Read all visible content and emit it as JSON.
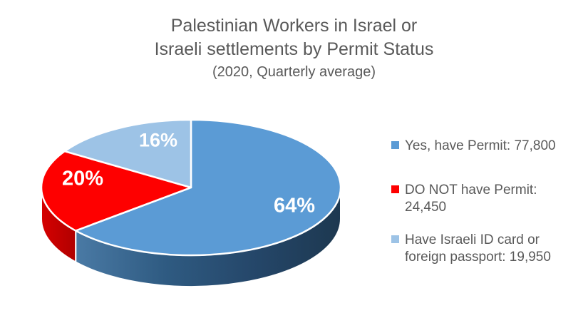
{
  "page": {
    "background": "#FFFFFF"
  },
  "title": {
    "line1": "Palestinian Workers in Israel or",
    "line2": "Israeli settlements by Permit Status",
    "subtitle": "(2020, Quarterly average)",
    "color": "#595959"
  },
  "chart_data": {
    "type": "pie",
    "style": "3d",
    "title": "Palestinian Workers in Israel or Israeli settlements by Permit Status (2020, Quarterly average)",
    "start_angle_deg": 0,
    "direction": "clockwise",
    "legend_position": "right",
    "label_color": "#FFFFFF",
    "slice_border_color": "#FFFFFF",
    "slices": [
      {
        "label": "Yes, have Permit",
        "value": 77800,
        "pct": 64,
        "pct_label": "64%",
        "color": "#5B9BD5",
        "side_colors": [
          "#4A7AA5",
          "#2F5B82",
          "#25476A",
          "#1D3850"
        ]
      },
      {
        "label": "DO NOT have Permit",
        "value": 24450,
        "pct": 20,
        "pct_label": "20%",
        "color": "#FE0000",
        "side_colors": [
          "#D60000",
          "#B00000"
        ]
      },
      {
        "label": "Have Israeli ID card or foreign passport",
        "value": 19950,
        "pct": 16,
        "pct_label": "16%",
        "color": "#9DC3E6",
        "side_colors": [
          "#7FA6C7",
          "#6A92B4"
        ]
      }
    ]
  },
  "legend": {
    "text_color": "#595959",
    "items": [
      {
        "text": "Yes, have Permit: 77,800",
        "color": "#5B9BD5"
      },
      {
        "text": "DO NOT have Permit: 24,450",
        "color": "#FE0000"
      },
      {
        "text": "Have Israeli ID card or foreign passport: 19,950",
        "color": "#9DC3E6"
      }
    ]
  }
}
